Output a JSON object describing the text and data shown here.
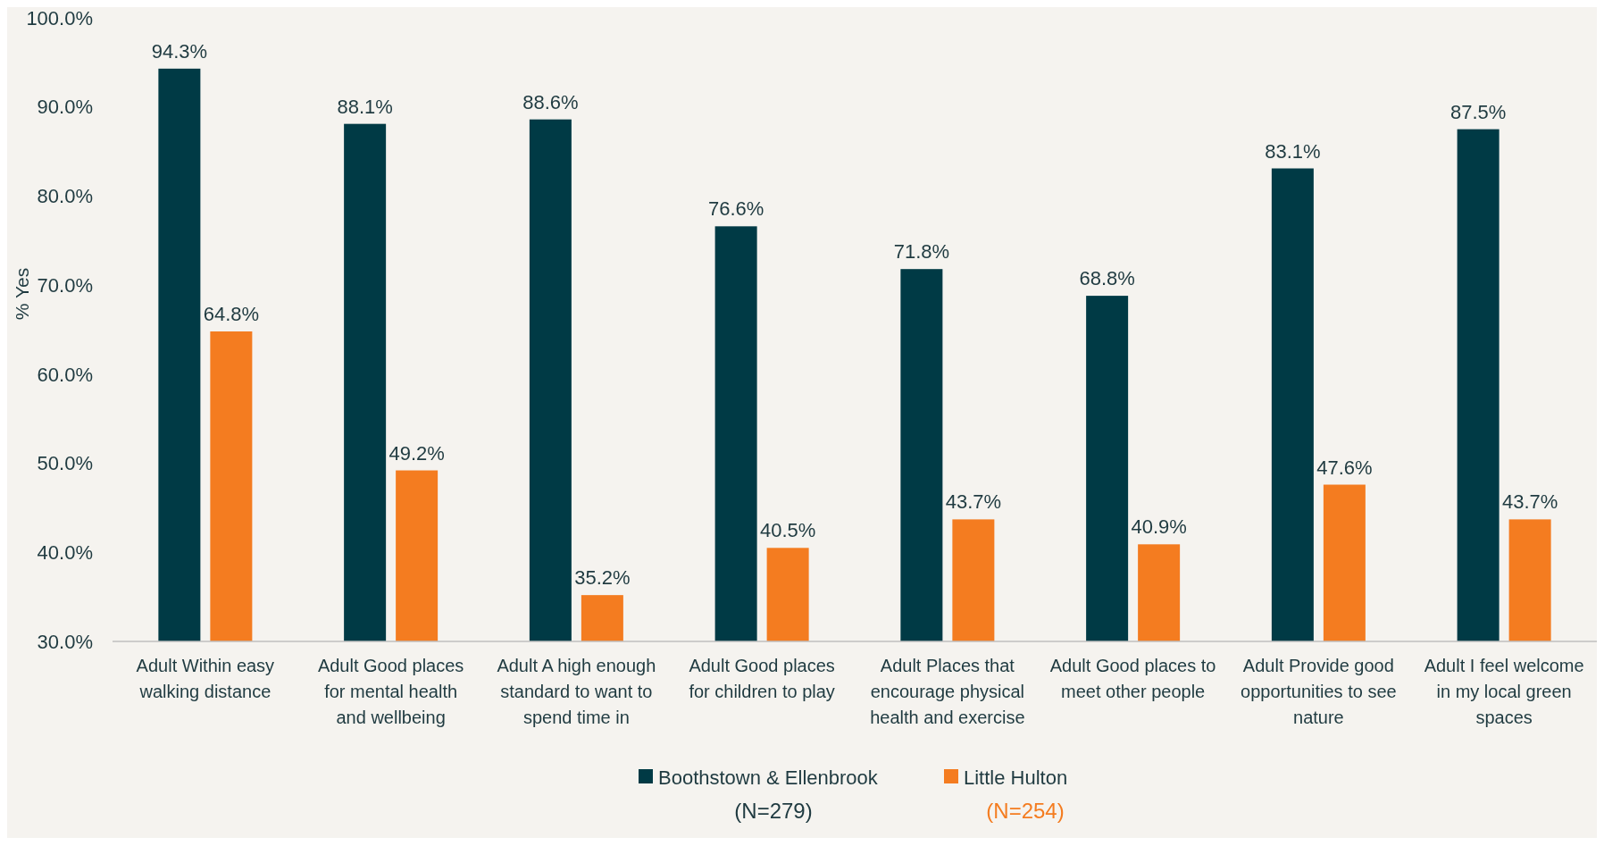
{
  "chart_data": {
    "type": "bar",
    "ylabel": "% Yes",
    "categories": [
      "Adult Within easy walking distance",
      "Adult Good places for mental health and wellbeing",
      "Adult A high enough standard to want to spend time in",
      "Adult Good places for children to play",
      "Adult Places that encourage physical health and exercise",
      "Adult Good places to meet other people",
      "Adult Provide good opportunities to see nature",
      "Adult I feel welcome in my local green spaces"
    ],
    "series": [
      {
        "name": "Boothstown & Ellenbrook",
        "color": "#003a45",
        "values": [
          94.3,
          88.1,
          88.6,
          76.6,
          71.8,
          68.8,
          83.1,
          87.5
        ]
      },
      {
        "name": "Little Hulton",
        "color": "#f47c20",
        "values": [
          64.8,
          49.2,
          35.2,
          40.5,
          43.7,
          40.9,
          47.6,
          43.7
        ]
      }
    ],
    "ylim": [
      30,
      100
    ],
    "yticks": [
      {
        "value": 30,
        "label": "30.0%"
      },
      {
        "value": 40,
        "label": "40.0%"
      },
      {
        "value": 50,
        "label": "50.0%"
      },
      {
        "value": 60,
        "label": "60.0%"
      },
      {
        "value": 70,
        "label": "70.0%"
      },
      {
        "value": 80,
        "label": "80.0%"
      },
      {
        "value": 90,
        "label": "90.0%"
      },
      {
        "value": 100,
        "label": "100.0%"
      }
    ],
    "value_labels": [
      [
        "94.3%",
        "88.1%",
        "88.6%",
        "76.6%",
        "71.8%",
        "68.8%",
        "83.1%",
        "87.5%"
      ],
      [
        "64.8%",
        "49.2%",
        "35.2%",
        "40.5%",
        "43.7%",
        "40.9%",
        "47.6%",
        "43.7%"
      ]
    ],
    "legend": "bottom",
    "grid": false,
    "annotations": [
      "(N=279)",
      "(N=254)"
    ]
  }
}
